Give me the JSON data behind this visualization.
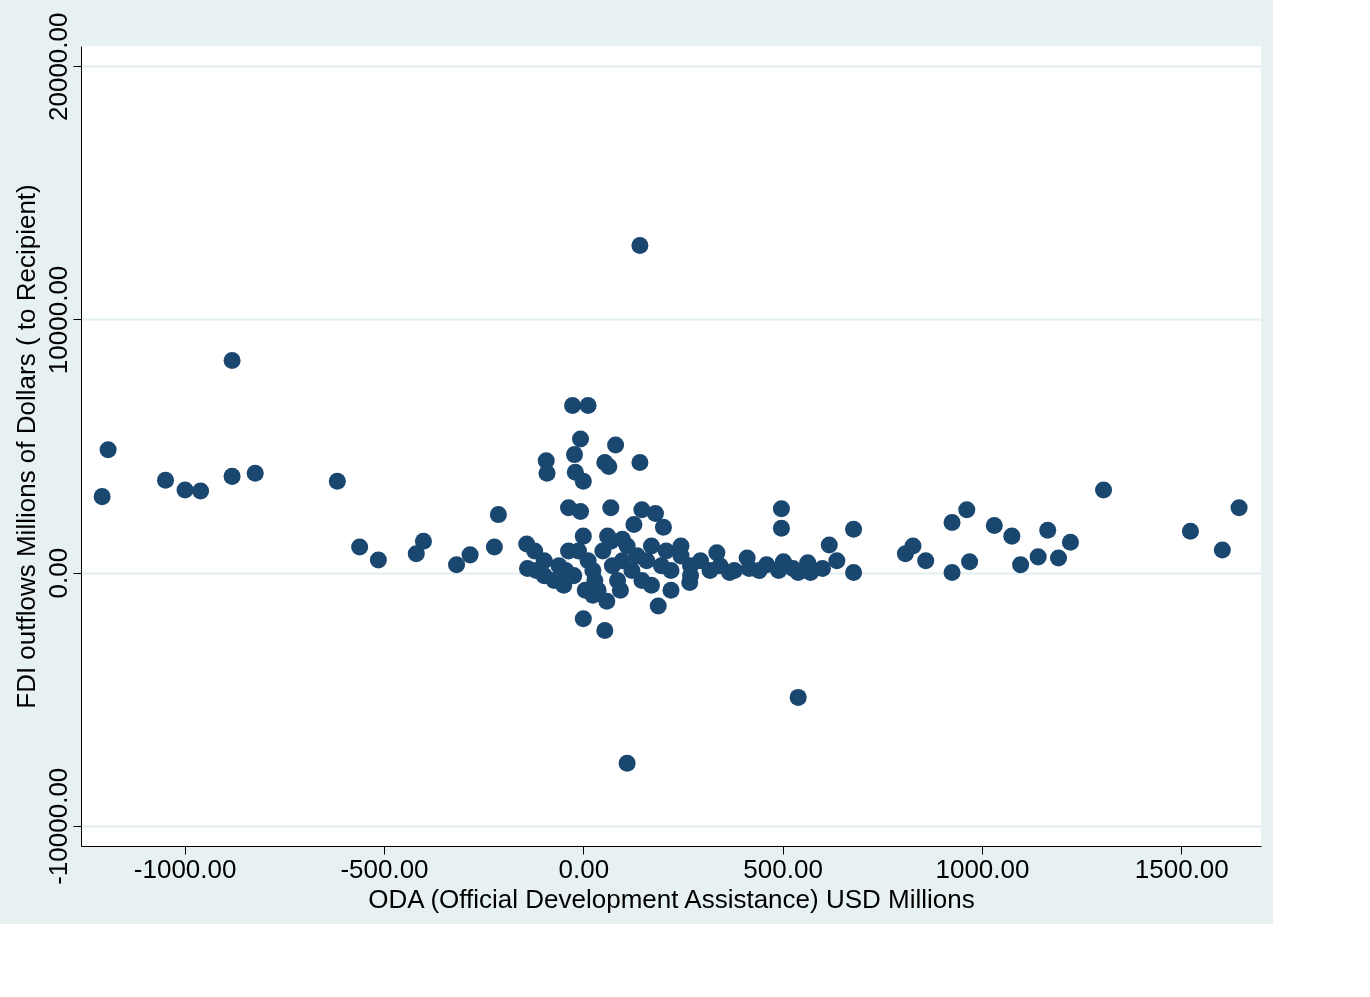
{
  "chart_data": {
    "type": "scatter",
    "xlabel": "ODA (Official Development Assistance) USD Millions",
    "ylabel": "FDI outflows Millions of Dollars (  to Recipient)",
    "xlim": [
      -1260,
      1700
    ],
    "ylim": [
      -10800,
      20800
    ],
    "xticks": [
      {
        "value": -1000,
        "label": "-1000.00"
      },
      {
        "value": -500,
        "label": "-500.00"
      },
      {
        "value": 0,
        "label": "0.00"
      },
      {
        "value": 500,
        "label": "500.00"
      },
      {
        "value": 1000,
        "label": "1000.00"
      },
      {
        "value": 1500,
        "label": "1500.00"
      }
    ],
    "yticks": [
      {
        "value": -10000,
        "label": "-10000.00"
      },
      {
        "value": 0,
        "label": "0.00"
      },
      {
        "value": 10000,
        "label": "10000.00"
      },
      {
        "value": 20000,
        "label": "20000.00"
      }
    ],
    "grid": "y",
    "marker": "circle",
    "series": [
      {
        "color": "#1a476f",
        "x": [
          -1207,
          -1192,
          -1048,
          -999,
          -960,
          -881,
          -881,
          -823,
          -617,
          -561,
          -514,
          -419,
          -401,
          -318,
          -284,
          -223,
          -213,
          -142,
          -140,
          -93,
          -91,
          -37,
          -27,
          12,
          -7,
          -22,
          -20,
          0,
          -7,
          81,
          54,
          64,
          69,
          142,
          142,
          147,
          181,
          201,
          127,
          0,
          54,
          110,
          539,
          188,
          59,
          24,
          220,
          267,
          497,
          497,
          617,
          678,
          678,
          636,
          808,
          827,
          859,
          925,
          962,
          925,
          969,
          1031,
          1075,
          1097,
          1141,
          1165,
          1192,
          1222,
          1305,
          1523,
          1603,
          1645,
          -122,
          -98,
          -73,
          -49,
          -24,
          -12,
          0,
          12,
          24,
          37,
          49,
          61,
          73,
          86,
          98,
          110,
          122,
          135,
          147,
          159,
          171,
          196,
          208,
          220,
          245,
          269,
          294,
          318,
          335,
          343,
          367,
          411,
          416,
          460,
          490,
          502,
          526,
          563,
          570,
          600,
          -98,
          -61,
          -37,
          5,
          29,
          93,
          171,
          -44,
          -118,
          69,
          98,
          245,
          269,
          379,
          441,
          539
        ],
        "values": [
          3000,
          4850,
          3650,
          3260,
          3220,
          8380,
          3800,
          3920,
          3610,
          1010,
          500,
          740,
          1240,
          310,
          700,
          1010,
          2290,
          1130,
          160,
          4420,
          3920,
          2560,
          6600,
          6600,
          5280,
          4660,
          3960,
          3610,
          2410,
          5040,
          4350,
          4190,
          2560,
          12920,
          4350,
          2480,
          2330,
          1790,
          1900,
          -1820,
          -2290,
          -7530,
          -4930,
          -1320,
          -1130,
          -890,
          -700,
          -390,
          2520,
          1750,
          1090,
          1710,
          0,
          470,
          740,
          1050,
          470,
          1980,
          2480,
          0,
          430,
          1860,
          1440,
          310,
          620,
          1670,
          580,
          1200,
          3260,
          1630,
          890,
          2560,
          850,
          470,
          -310,
          -500,
          -120,
          850,
          1440,
          470,
          80,
          -700,
          850,
          1440,
          270,
          -310,
          470,
          1050,
          80,
          660,
          -310,
          470,
          1050,
          270,
          850,
          80,
          660,
          270,
          470,
          80,
          780,
          270,
          0,
          580,
          160,
          310,
          80,
          430,
          160,
          390,
          0,
          160,
          -120,
          270,
          850,
          -700,
          -310,
          -700,
          -500,
          80,
          80,
          1240,
          1320,
          1050,
          -120,
          80,
          80,
          0
        ]
      }
    ]
  }
}
